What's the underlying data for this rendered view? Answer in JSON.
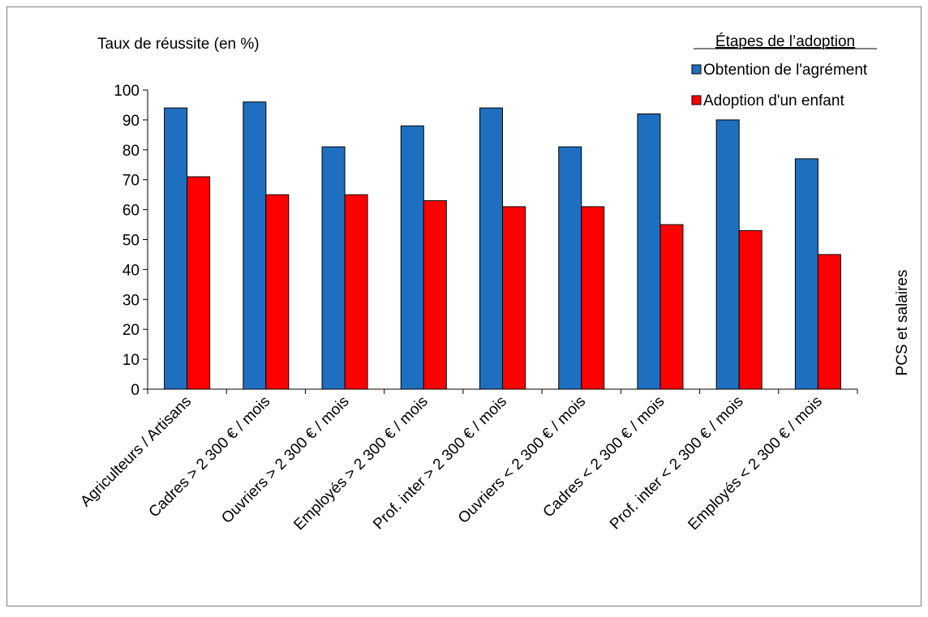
{
  "chart_data": {
    "type": "bar",
    "ylabel": "Taux de réussite (en %)",
    "xlabel": "PCS et salaires",
    "ylim": [
      0,
      100
    ],
    "yticks": [
      0,
      10,
      20,
      30,
      40,
      50,
      60,
      70,
      80,
      90,
      100
    ],
    "grid": false,
    "legend": {
      "title": "Étapes de l’adoption",
      "position": "top-right"
    },
    "categories": [
      "Agriculteurs / Artisans",
      "Cadres > 2 300 € / mois",
      "Ouvriers > 2 300 € / mois",
      "Employés > 2 300 € / mois",
      "Prof. inter > 2 300 € / mois",
      "Ouvriers < 2 300 € / mois",
      "Cadres < 2 300 € / mois",
      "Prof. inter < 2 300 € / mois",
      "Employés < 2 300 € / mois"
    ],
    "series": [
      {
        "name": "Obtention de l'agrément",
        "color": "#1f6fc0",
        "values": [
          94,
          96,
          81,
          88,
          94,
          81,
          92,
          90,
          77
        ]
      },
      {
        "name": "Adoption d'un enfant",
        "color": "#ff0000",
        "values": [
          71,
          65,
          65,
          63,
          61,
          61,
          55,
          53,
          45
        ]
      }
    ]
  }
}
